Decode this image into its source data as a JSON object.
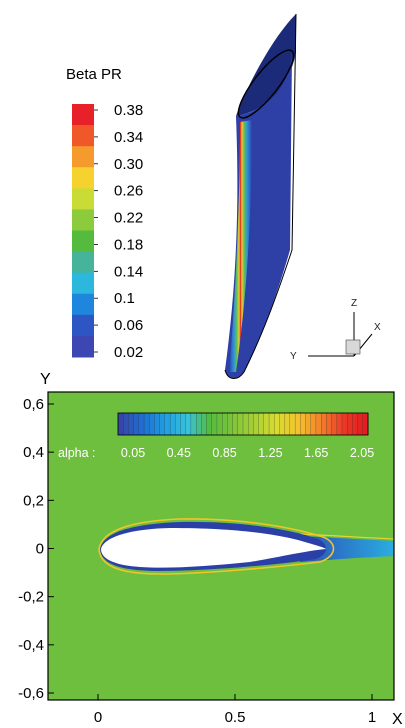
{
  "top_panel": {
    "legend_title": "Beta PR",
    "legend_values": [
      "0.38",
      "0.34",
      "0.30",
      "0.26",
      "0.22",
      "0.18",
      "0.14",
      "0.1",
      "0.06",
      "0.02"
    ],
    "legend_colors": [
      "#e8202a",
      "#f0582a",
      "#f59a2c",
      "#f6d22f",
      "#c9dc35",
      "#8ccc3c",
      "#55bb3e",
      "#46b49a",
      "#2cb7dc",
      "#1e86dc",
      "#2e55c4",
      "#3d47b3"
    ],
    "triad": {
      "x": "X",
      "y": "Y",
      "z": "Z"
    },
    "body_color": "#2e3fa6",
    "stripe_peak_color": "#e3231f"
  },
  "bottom_panel": {
    "y_axis_title": "Y",
    "x_axis_title": "X",
    "y_ticks": [
      "0,6",
      "0,4",
      "0,2",
      "0",
      "-0,2",
      "-0,4",
      "-0,6"
    ],
    "x_ticks": [
      "0",
      "0.5",
      "1"
    ],
    "colorbar_label": "alpha :",
    "colorbar_values": [
      "0.05",
      "0.45",
      "0.85",
      "1.25",
      "1.65",
      "2.05"
    ],
    "colorbar_colors": [
      "#3546a8",
      "#1f6fd3",
      "#1f9ee0",
      "#37c2dd",
      "#54bb3e",
      "#7cc43a",
      "#a8d035",
      "#d8dc30",
      "#f3c22e",
      "#f2812b",
      "#ea3a28",
      "#e41d20"
    ],
    "field_color": "#6ebf3d"
  }
}
